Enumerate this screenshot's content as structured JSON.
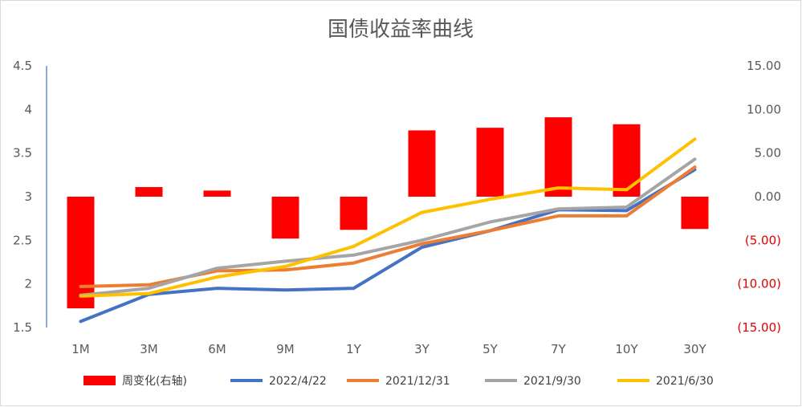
{
  "chart_data": {
    "type": "bar",
    "title": "国债收益率曲线",
    "categories": [
      "1M",
      "3M",
      "6M",
      "9M",
      "1Y",
      "3Y",
      "5Y",
      "7Y",
      "10Y",
      "30Y"
    ],
    "left_axis": {
      "ylim": [
        1.5,
        4.5
      ],
      "ticks": [
        1.5,
        2,
        2.5,
        3,
        3.5,
        4,
        4.5
      ],
      "tick_labels": [
        "1.5",
        "2",
        "2.5",
        "3",
        "3.5",
        "4",
        "4.5"
      ]
    },
    "right_axis": {
      "ylim": [
        -15,
        15
      ],
      "ticks": [
        -15,
        -10,
        -5,
        0,
        5,
        10,
        15
      ],
      "tick_labels": [
        "(15.00)",
        "(10.00)",
        "(5.00)",
        "0.00",
        "5.00",
        "10.00",
        "15.00"
      ],
      "negative_color": "#e00000"
    },
    "bar_series": {
      "name": "周变化(右轴)",
      "color": "#ff0000",
      "axis": "right",
      "values": [
        -12.8,
        1.1,
        0.7,
        -4.8,
        -3.8,
        7.6,
        7.9,
        9.1,
        8.3,
        -3.7
      ]
    },
    "line_series": [
      {
        "name": "2022/4/22",
        "color": "#4472c4",
        "values": [
          1.57,
          1.88,
          1.95,
          1.93,
          1.95,
          2.42,
          2.61,
          2.85,
          2.84,
          3.31
        ]
      },
      {
        "name": "2021/12/31",
        "color": "#ed7d31",
        "values": [
          1.97,
          1.99,
          2.15,
          2.16,
          2.24,
          2.46,
          2.61,
          2.78,
          2.78,
          3.34
        ]
      },
      {
        "name": "2021/9/30",
        "color": "#a5a5a5",
        "values": [
          1.87,
          1.95,
          2.18,
          2.26,
          2.33,
          2.5,
          2.71,
          2.86,
          2.88,
          3.43
        ]
      },
      {
        "name": "2021/6/30",
        "color": "#ffc000",
        "values": [
          1.86,
          1.89,
          2.08,
          2.2,
          2.43,
          2.82,
          2.97,
          3.1,
          3.08,
          3.66
        ]
      }
    ],
    "legend_position": "bottom",
    "grid": false
  }
}
